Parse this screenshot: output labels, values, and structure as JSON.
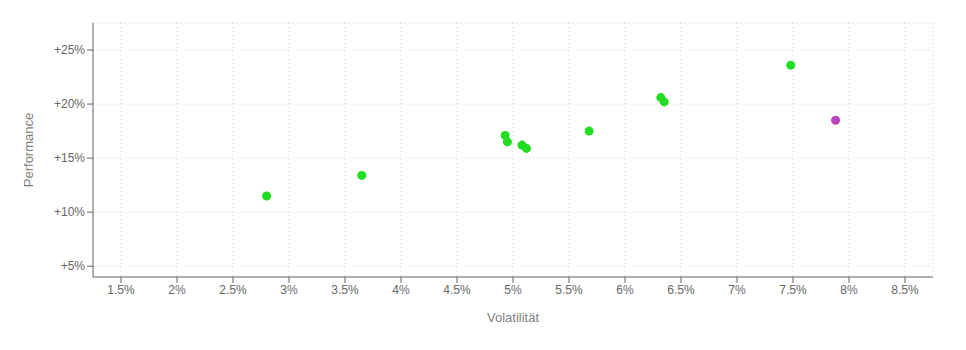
{
  "chart_data": {
    "type": "scatter",
    "xlabel": "Volatilität",
    "ylabel": "Performance",
    "xlim": [
      1.25,
      8.75
    ],
    "ylim": [
      4.0,
      27.5
    ],
    "xticks": [
      {
        "value": 1.5,
        "label": "1.5%"
      },
      {
        "value": 2.0,
        "label": "2%"
      },
      {
        "value": 2.5,
        "label": "2.5%"
      },
      {
        "value": 3.0,
        "label": "3%"
      },
      {
        "value": 3.5,
        "label": "3.5%"
      },
      {
        "value": 4.0,
        "label": "4%"
      },
      {
        "value": 4.5,
        "label": "4.5%"
      },
      {
        "value": 5.0,
        "label": "5%"
      },
      {
        "value": 5.5,
        "label": "5.5%"
      },
      {
        "value": 6.0,
        "label": "6%"
      },
      {
        "value": 6.5,
        "label": "6.5%"
      },
      {
        "value": 7.0,
        "label": "7%"
      },
      {
        "value": 7.5,
        "label": "7.5%"
      },
      {
        "value": 8.0,
        "label": "8%"
      },
      {
        "value": 8.5,
        "label": "8.5%"
      }
    ],
    "yticks": [
      {
        "value": 5.0,
        "label": "+5%"
      },
      {
        "value": 10.0,
        "label": "+10%"
      },
      {
        "value": 15.0,
        "label": "+15%"
      },
      {
        "value": 20.0,
        "label": "+20%"
      },
      {
        "value": 25.0,
        "label": "+25%"
      }
    ],
    "grid": true,
    "series": [
      {
        "color": "#22dd22",
        "x": [
          2.8,
          3.65,
          4.93,
          4.95,
          5.08,
          5.12,
          5.68,
          6.32,
          6.35,
          7.48
        ],
        "values": [
          11.5,
          13.4,
          17.1,
          16.5,
          16.2,
          15.9,
          17.5,
          20.6,
          20.2,
          23.6
        ]
      },
      {
        "color": "#bb44bb",
        "x": [
          7.88
        ],
        "values": [
          18.5
        ]
      }
    ]
  }
}
